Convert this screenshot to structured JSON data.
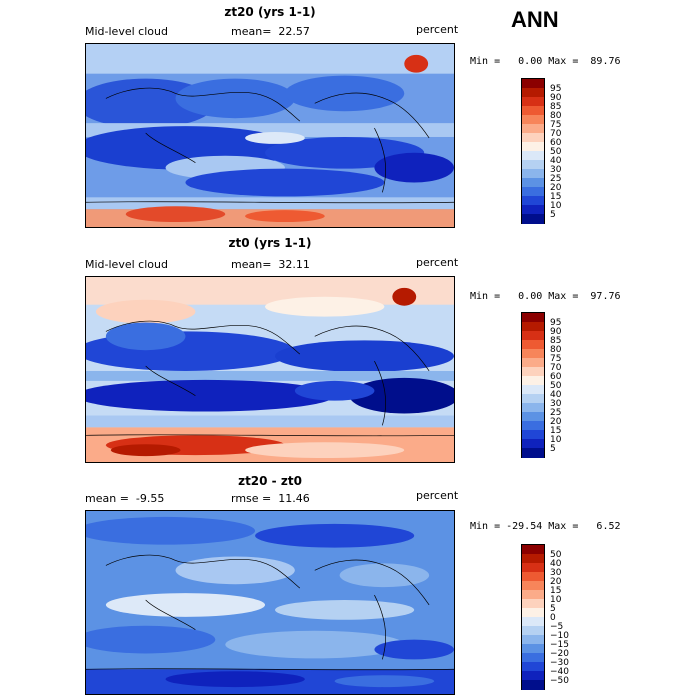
{
  "season": "ANN",
  "panels": [
    {
      "title": "zt20 (yrs 1-1)",
      "left_label": "Mid-level cloud",
      "center_label": "mean=  22.57",
      "right_label": "percent",
      "minmax": "Min =   0.00 Max =  89.76",
      "colorbar_labels": [
        "95",
        "90",
        "85",
        "80",
        "75",
        "70",
        "60",
        "50",
        "40",
        "30",
        "25",
        "20",
        "15",
        "10",
        "5"
      ]
    },
    {
      "title": "zt0 (yrs 1-1)",
      "left_label": "Mid-level cloud",
      "center_label": "mean=  32.11",
      "right_label": "percent",
      "minmax": "Min =   0.00 Max =  97.76",
      "colorbar_labels": [
        "95",
        "90",
        "85",
        "80",
        "75",
        "70",
        "60",
        "50",
        "40",
        "30",
        "25",
        "20",
        "15",
        "10",
        "5"
      ]
    },
    {
      "title": "zt20 - zt0",
      "left_label": "mean =  -9.55",
      "center_label": "rmse =  11.46",
      "right_label": "percent",
      "minmax": "Min = -29.54 Max =   6.52",
      "colorbar_labels": [
        "50",
        "40",
        "30",
        "20",
        "15",
        "10",
        "5",
        "0",
        "−5",
        "−10",
        "−15",
        "−20",
        "−30",
        "−40",
        "−50"
      ]
    }
  ],
  "colors": {
    "colorbar": [
      "#8b0000",
      "#b51a00",
      "#d73015",
      "#ee5a32",
      "#f7855a",
      "#fbab89",
      "#fdd2bd",
      "#fdf1e6",
      "#dbe8f8",
      "#b5d1f2",
      "#8bb5ec",
      "#5c92e4",
      "#3a6ee0",
      "#2046d6",
      "#0f22bd",
      "#000e8c"
    ],
    "ocean_deep": "#1a3fd0",
    "ocean_mid": "#3c6be0",
    "light_blue": "#a9c8f2",
    "pale": "#dde9f8",
    "salmon": "#f6c3ad",
    "red": "#e34a2a"
  }
}
